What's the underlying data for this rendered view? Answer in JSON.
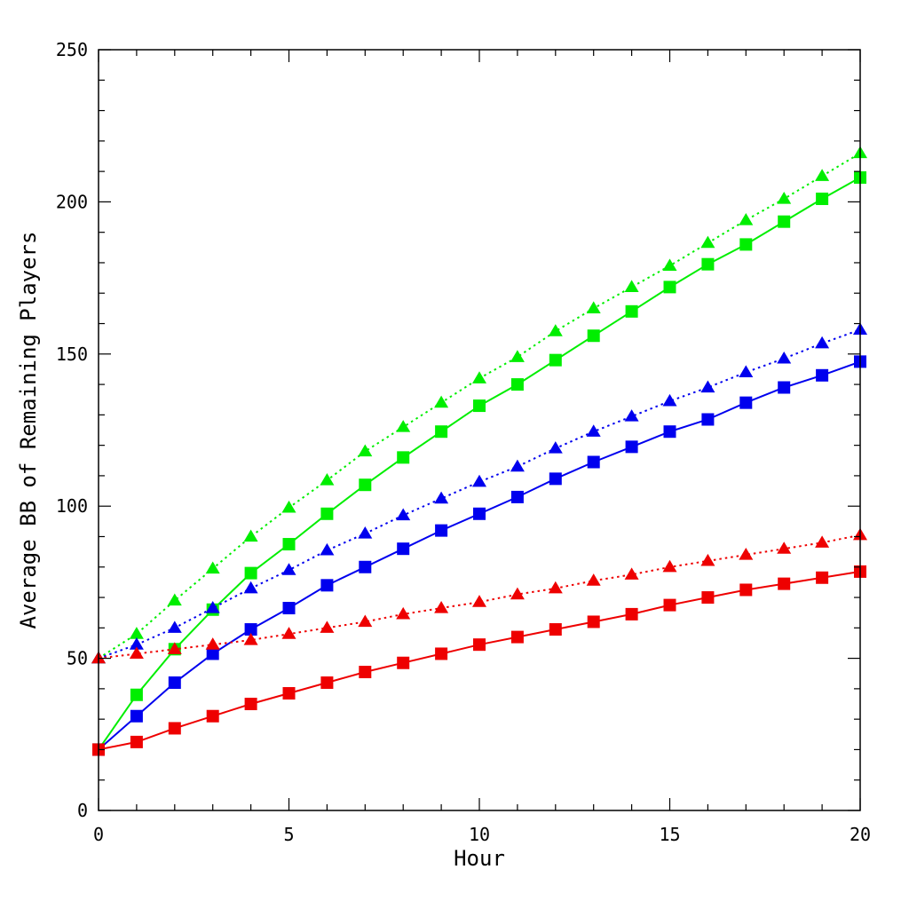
{
  "chart_data": {
    "type": "line",
    "title": "",
    "xlabel": "Hour",
    "ylabel": "Average BB of Remaining Players",
    "xlim": [
      0,
      20
    ],
    "ylim": [
      0,
      250
    ],
    "x_ticks": [
      0,
      5,
      10,
      15,
      20
    ],
    "y_ticks": [
      0,
      50,
      100,
      150,
      200,
      250
    ],
    "grid": false,
    "legend": "none",
    "x": [
      0,
      1,
      2,
      3,
      4,
      5,
      6,
      7,
      8,
      9,
      10,
      11,
      12,
      13,
      14,
      15,
      16,
      17,
      18,
      19,
      20
    ],
    "series": [
      {
        "color": "#00ee00",
        "marker": "triangle",
        "line": "dotted",
        "values": [
          50,
          58,
          69,
          79.5,
          90,
          99.5,
          108.5,
          118,
          126,
          134,
          142,
          149,
          157.5,
          165,
          172,
          179,
          186.5,
          194,
          201,
          208.5,
          216
        ]
      },
      {
        "color": "#00ee00",
        "marker": "square",
        "line": "solid",
        "values": [
          20,
          38,
          53,
          66,
          78,
          87.5,
          97.5,
          107,
          116,
          124.5,
          133,
          140,
          148,
          156,
          164,
          172,
          179.5,
          186,
          193.5,
          201,
          208
        ]
      },
      {
        "color": "#0000ee",
        "marker": "triangle",
        "line": "dotted",
        "values": [
          50,
          54.5,
          60,
          66.5,
          73,
          79,
          85.5,
          91,
          97,
          102.5,
          108,
          113,
          119,
          124.5,
          129.5,
          134.5,
          139,
          144,
          148.5,
          153.5,
          158
        ]
      },
      {
        "color": "#0000ee",
        "marker": "square",
        "line": "solid",
        "values": [
          20,
          31,
          42,
          51.5,
          59.5,
          66.5,
          74,
          80,
          86,
          92,
          97.5,
          103,
          109,
          114.5,
          119.5,
          124.5,
          128.5,
          134,
          139,
          143,
          147.5
        ]
      },
      {
        "color": "#ee0000",
        "marker": "triangle",
        "line": "dotted",
        "values": [
          50,
          51.5,
          53,
          54.5,
          56,
          58,
          60,
          62,
          64.5,
          66.5,
          68.5,
          71,
          73,
          75.5,
          77.5,
          80,
          82,
          84,
          86,
          88,
          90.5
        ]
      },
      {
        "color": "#ee0000",
        "marker": "square",
        "line": "solid",
        "values": [
          20,
          22.5,
          27,
          31,
          35,
          38.5,
          42,
          45.5,
          48.5,
          51.5,
          54.5,
          57,
          59.5,
          62,
          64.5,
          67.5,
          70,
          72.5,
          74.5,
          76.5,
          78.5
        ]
      }
    ]
  }
}
